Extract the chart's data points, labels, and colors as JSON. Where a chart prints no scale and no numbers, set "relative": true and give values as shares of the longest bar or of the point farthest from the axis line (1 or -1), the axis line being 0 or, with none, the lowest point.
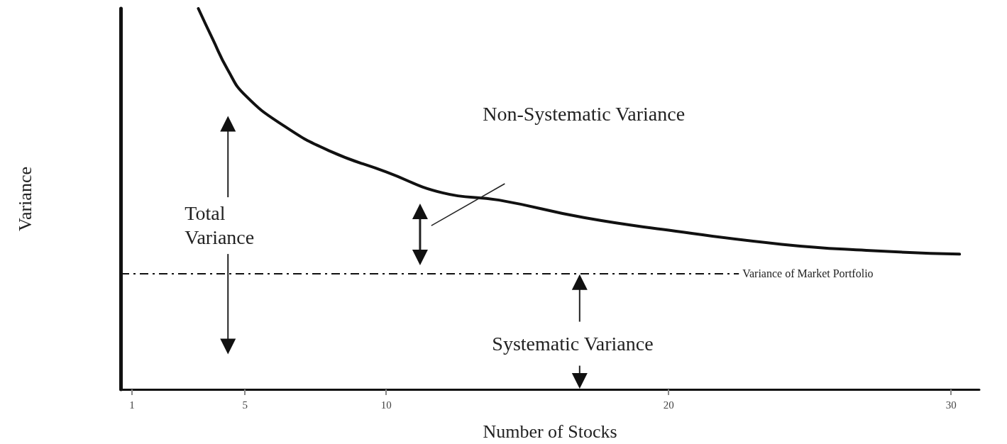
{
  "chart_data": {
    "type": "line",
    "relative": true,
    "xlabel": "Number of Stocks",
    "ylabel": "Variance",
    "x": [
      3.35,
      3.85,
      4.4,
      5,
      6.4,
      8,
      10,
      12,
      14,
      17,
      20,
      24,
      27,
      30.3
    ],
    "series": [
      {
        "color": "#111111",
        "values": [
          1.0,
          0.921,
          0.838,
          0.773,
          0.691,
          0.626,
          0.571,
          0.516,
          0.497,
          0.451,
          0.418,
          0.381,
          0.365,
          0.355
        ]
      }
    ],
    "xlim": [
      0.6,
      31
    ],
    "xticks": [
      1,
      5,
      10,
      20,
      30
    ],
    "ref_lines": [
      {
        "axis": "y",
        "value": 0.304,
        "label": "Variance of Market Portfolio",
        "color": "#111111",
        "line_style": "dashed"
      }
    ],
    "annotations": [
      "Total\nVariance",
      "Non-Systematic Variance",
      "Systematic Variance"
    ],
    "grid": false,
    "marker": "none",
    "line_style": "solid"
  }
}
